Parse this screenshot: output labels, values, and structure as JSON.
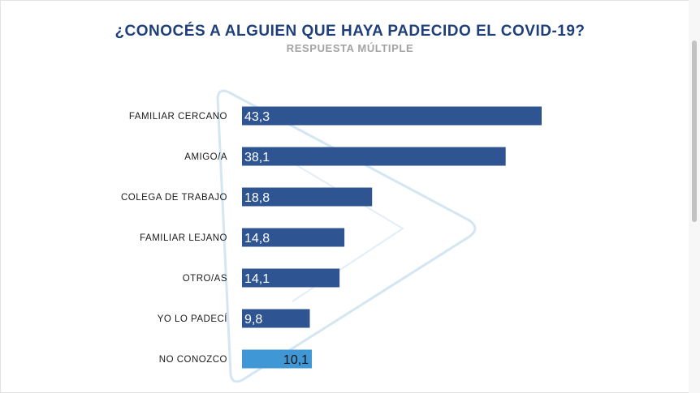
{
  "header": {
    "title": "¿CONOCÉS A ALGUIEN QUE HAYA PADECIDO EL COVID-19?",
    "subtitle": "RESPUESTA MÚLTIPLE"
  },
  "colors": {
    "bar_primary": "#2e5592",
    "bar_highlight": "#3f97d6",
    "title": "#1f3f7a",
    "watermark": "#d4e6f2"
  },
  "chart_data": {
    "type": "bar",
    "orientation": "horizontal",
    "title": "¿CONOCÉS A ALGUIEN QUE HAYA PADECIDO EL COVID-19?",
    "subtitle": "RESPUESTA MÚLTIPLE",
    "categories": [
      "FAMILIAR CERCANO",
      "AMIGO/A",
      "COLEGA DE TRABAJO",
      "FAMILIAR LEJANO",
      "OTRO/AS",
      "YO LO PADECÍ",
      "NO CONOZCO"
    ],
    "values": [
      43.3,
      38.1,
      18.8,
      14.8,
      14.1,
      9.8,
      10.1
    ],
    "value_labels": [
      "43,3",
      "38,1",
      "18,8",
      "14,8",
      "14,1",
      "9,8",
      "10,1"
    ],
    "highlight_index": 6,
    "xlim": [
      0,
      43.3
    ],
    "grid": false,
    "legend": "none"
  }
}
